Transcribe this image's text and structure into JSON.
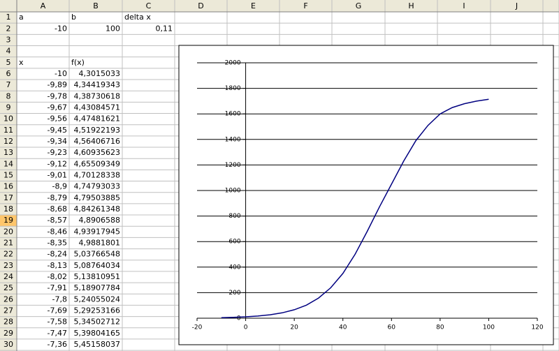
{
  "sheet": {
    "columns": [
      "A",
      "B",
      "C",
      "D",
      "E",
      "F",
      "G",
      "H",
      "I",
      "J"
    ],
    "rows": [
      {
        "label": "1",
        "A": "a",
        "B": "b",
        "C": "delta x"
      },
      {
        "label": "2",
        "A": "-10",
        "B": "100",
        "C": "0,11"
      },
      {
        "label": "3"
      },
      {
        "label": "4"
      },
      {
        "label": "5",
        "A": "x",
        "B": "f(x)"
      },
      {
        "label": "6",
        "A": "-10",
        "B": "4,3015033"
      },
      {
        "label": "7",
        "A": "-9,89",
        "B": "4,34419343"
      },
      {
        "label": "8",
        "A": "-9,78",
        "B": "4,38730618"
      },
      {
        "label": "9",
        "A": "-9,67",
        "B": "4,43084571"
      },
      {
        "label": "10",
        "A": "-9,56",
        "B": "4,47481621"
      },
      {
        "label": "11",
        "A": "-9,45",
        "B": "4,51922193"
      },
      {
        "label": "12",
        "A": "-9,34",
        "B": "4,56406716"
      },
      {
        "label": "13",
        "A": "-9,23",
        "B": "4,60935623"
      },
      {
        "label": "14",
        "A": "-9,12",
        "B": "4,65509349"
      },
      {
        "label": "15",
        "A": "-9,01",
        "B": "4,70128338"
      },
      {
        "label": "16",
        "A": "-8,9",
        "B": "4,74793033"
      },
      {
        "label": "17",
        "A": "-8,79",
        "B": "4,79503885"
      },
      {
        "label": "18",
        "A": "-8,68",
        "B": "4,84261348"
      },
      {
        "label": "19",
        "A": "-8,57",
        "B": "4,8906588"
      },
      {
        "label": "20",
        "A": "-8,46",
        "B": "4,93917945"
      },
      {
        "label": "21",
        "A": "-8,35",
        "B": "4,9881801"
      },
      {
        "label": "22",
        "A": "-8,24",
        "B": "5,03766548"
      },
      {
        "label": "23",
        "A": "-8,13",
        "B": "5,08764034"
      },
      {
        "label": "24",
        "A": "-8,02",
        "B": "5,13810951"
      },
      {
        "label": "25",
        "A": "-7,91",
        "B": "5,18907784"
      },
      {
        "label": "26",
        "A": "-7,8",
        "B": "5,24055024"
      },
      {
        "label": "27",
        "A": "-7,69",
        "B": "5,29253166"
      },
      {
        "label": "28",
        "A": "-7,58",
        "B": "5,34502712"
      },
      {
        "label": "29",
        "A": "-7,47",
        "B": "5,39804165"
      },
      {
        "label": "30",
        "A": "-7,36",
        "B": "5,45158037"
      }
    ]
  },
  "chart_data": {
    "type": "line",
    "x": [
      -10,
      -5,
      0,
      5,
      10,
      15,
      20,
      25,
      30,
      35,
      40,
      45,
      50,
      55,
      60,
      65,
      70,
      75,
      80,
      85,
      90,
      95,
      100
    ],
    "series": [
      {
        "color": "#000080",
        "values": [
          4,
          7,
          11,
          17,
          27,
          42,
          66,
          102,
          158,
          238,
          350,
          500,
          680,
          870,
          1050,
          1230,
          1390,
          1510,
          1600,
          1650,
          1680,
          1700,
          1715
        ]
      }
    ],
    "xlim": [
      -20,
      120
    ],
    "xticks": [
      -20,
      0,
      20,
      40,
      60,
      80,
      100,
      120
    ],
    "ylim": [
      0,
      2000
    ],
    "yticks": [
      0,
      200,
      400,
      600,
      800,
      1000,
      1200,
      1400,
      1600,
      1800,
      2000
    ],
    "grid": true
  }
}
